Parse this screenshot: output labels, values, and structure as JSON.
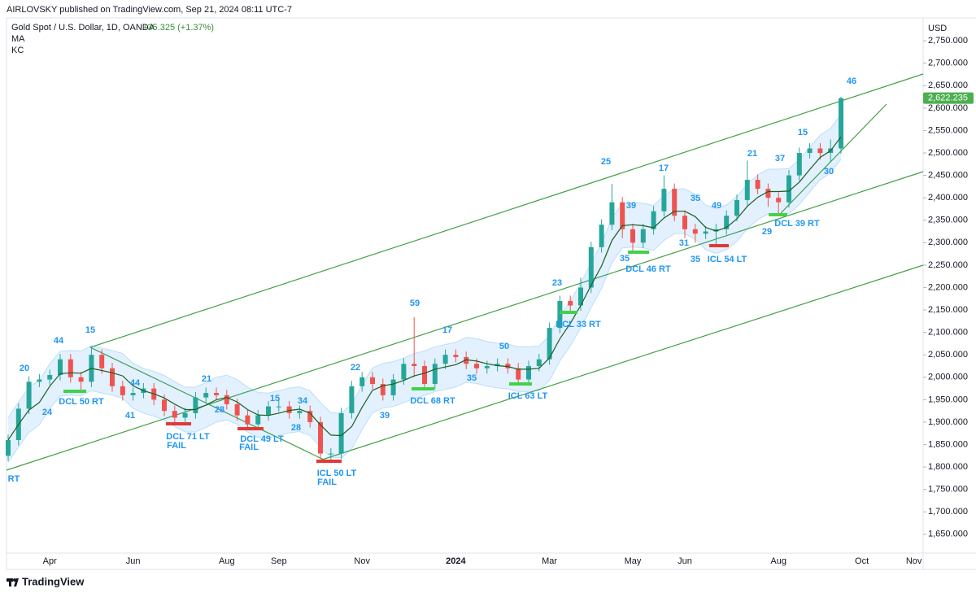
{
  "chart_data": {
    "type": "candlestick",
    "header": "AIRLOVSKY published on TradingView.com, Sep 21, 2024 08:11 UTC-7",
    "symbol": "Gold Spot / U.S. Dollar, 1D, OANDA",
    "change": "+35.325 (+1.37%)",
    "indicators": [
      "MA",
      "KC"
    ],
    "currency": "USD",
    "footer": "TradingView",
    "up_color": "#26a69a",
    "down_color": "#ef5350",
    "ma_color": "#1b5e20",
    "kc_color": "#2196f3",
    "annotation_color": "#2196f3",
    "change_color": "#388e3c",
    "categories": [
      null,
      null,
      null,
      null,
      "Apr",
      null,
      null,
      null,
      null,
      null,
      null,
      null,
      "Jun",
      null,
      null,
      null,
      null,
      null,
      null,
      null,
      null,
      "Aug",
      null,
      null,
      null,
      null,
      "Sep",
      null,
      null,
      null,
      null,
      null,
      null,
      null,
      "Nov",
      null,
      null,
      null,
      null,
      null,
      null,
      null,
      null,
      "2024",
      null,
      null,
      null,
      null,
      null,
      null,
      null,
      null,
      "Mar",
      null,
      null,
      null,
      null,
      null,
      null,
      null,
      "May",
      null,
      null,
      null,
      null,
      "Jun",
      null,
      null,
      null,
      null,
      null,
      null,
      null,
      null,
      "Aug",
      null,
      null,
      null,
      null,
      null,
      null,
      null,
      "Oct",
      null,
      null,
      null,
      null,
      "Nov"
    ],
    "open": [
      1825,
      1860,
      1930,
      1990,
      1995,
      2005,
      2040,
      2000,
      1990,
      2050,
      2020,
      1980,
      1960,
      1965,
      1975,
      1950,
      1925,
      1910,
      1920,
      1955,
      1965,
      1960,
      1940,
      1915,
      1895,
      1915,
      1935,
      1935,
      1920,
      1925,
      1900,
      1830,
      1830,
      1920,
      1980,
      2000,
      1985,
      1960,
      1995,
      2030,
      2025,
      1985,
      2030,
      2050,
      2045,
      2030,
      2020,
      2025,
      2030,
      2020,
      1995,
      2025,
      2040,
      2110,
      2170,
      2160,
      2200,
      2290,
      2340,
      2390,
      2330,
      2300,
      2330,
      2370,
      2420,
      2360,
      2330,
      2320,
      2325,
      2330,
      2360,
      2395,
      2440,
      2420,
      2400,
      2390,
      2450,
      2500,
      2510,
      2500,
      2510,
      null,
      null,
      null,
      null,
      null,
      null,
      null
    ],
    "high": [
      1872,
      1942,
      2002,
      2007,
      2017,
      2052,
      2052,
      2012,
      2068,
      2062,
      2032,
      1992,
      1977,
      1987,
      1987,
      1962,
      1937,
      1932,
      1967,
      1977,
      1977,
      1972,
      1952,
      1927,
      1927,
      1947,
      1950,
      1947,
      1937,
      1937,
      1912,
      1842,
      1932,
      1992,
      2012,
      2012,
      1997,
      2007,
      2042,
      2134,
      2037,
      2042,
      2062,
      2062,
      2057,
      2042,
      2037,
      2042,
      2042,
      2032,
      2037,
      2052,
      2122,
      2182,
      2182,
      2222,
      2302,
      2352,
      2431,
      2402,
      2342,
      2342,
      2382,
      2450,
      2432,
      2372,
      2342,
      2337,
      2342,
      2372,
      2407,
      2483,
      2452,
      2432,
      2412,
      2462,
      2512,
      2522,
      2522,
      2530,
      2625,
      null,
      null,
      null,
      null,
      null,
      null,
      null
    ],
    "low": [
      1813,
      1848,
      1918,
      1978,
      1983,
      1993,
      1988,
      1969,
      1978,
      2008,
      1968,
      1948,
      1948,
      1953,
      1938,
      1913,
      1896,
      1898,
      1908,
      1943,
      1948,
      1928,
      1903,
      1886,
      1883,
      1903,
      1923,
      1908,
      1908,
      1888,
      1818,
      1813,
      1818,
      1908,
      1968,
      1973,
      1948,
      1948,
      1983,
      2000,
      1974,
      1973,
      2018,
      2033,
      2018,
      2008,
      2008,
      2013,
      2008,
      1985,
      1983,
      2013,
      2028,
      2098,
      2143,
      2148,
      2188,
      2278,
      2328,
      2310,
      2279,
      2288,
      2318,
      2358,
      2348,
      2310,
      2300,
      2308,
      2293,
      2318,
      2348,
      2383,
      2408,
      2380,
      2362,
      2378,
      2438,
      2488,
      2485,
      2480,
      2498,
      null,
      null,
      null,
      null,
      null,
      null,
      null
    ],
    "close": [
      1860,
      1930,
      1990,
      1995,
      2005,
      2040,
      2000,
      1990,
      2050,
      2020,
      1980,
      1960,
      1965,
      1975,
      1950,
      1925,
      1910,
      1920,
      1955,
      1965,
      1960,
      1940,
      1915,
      1895,
      1915,
      1935,
      1935,
      1920,
      1925,
      1900,
      1830,
      1830,
      1920,
      1980,
      2000,
      1985,
      1960,
      1995,
      2030,
      2025,
      1985,
      2030,
      2050,
      2045,
      2030,
      2020,
      2025,
      2030,
      2020,
      1995,
      2025,
      2040,
      2110,
      2170,
      2160,
      2200,
      2290,
      2340,
      2390,
      2330,
      2300,
      2330,
      2370,
      2420,
      2360,
      2330,
      2320,
      2325,
      2330,
      2360,
      2395,
      2440,
      2420,
      2400,
      2390,
      2450,
      2500,
      2510,
      2500,
      2510,
      2622.235,
      null,
      null,
      null,
      null,
      null,
      null,
      null
    ],
    "ma": [
      1860,
      1895,
      1927,
      1944,
      1980,
      2008,
      2010,
      2009,
      2020,
      2015,
      2010,
      2003,
      1981,
      1970,
      1963,
      1954,
      1940,
      1928,
      1928,
      1938,
      1950,
      1955,
      1945,
      1928,
      1916,
      1915,
      1920,
      1926,
      1929,
      1920,
      1894,
      1871,
      1870,
      1890,
      1933,
      1971,
      1981,
      1985,
      1993,
      2003,
      2009,
      2018,
      2023,
      2028,
      2039,
      2036,
      2030,
      2026,
      2024,
      2018,
      2018,
      2020,
      2043,
      2086,
      2120,
      2160,
      2205,
      2248,
      2305,
      2338,
      2340,
      2338,
      2333,
      2355,
      2370,
      2370,
      2358,
      2334,
      2326,
      2334,
      2353,
      2381,
      2401,
      2414,
      2414,
      2415,
      2435,
      2463,
      2490,
      2505,
      2536,
      null,
      null,
      null,
      null,
      null,
      null,
      null
    ],
    "kc_upper": [
      1910,
      1945,
      1977,
      1994,
      2030,
      2058,
      2060,
      2059,
      2070,
      2065,
      2060,
      2053,
      2031,
      2020,
      2013,
      2004,
      1990,
      1978,
      1978,
      1988,
      2000,
      2005,
      1995,
      1978,
      1966,
      1965,
      1970,
      1976,
      1979,
      1970,
      1944,
      1921,
      1920,
      1940,
      1983,
      2021,
      2031,
      2035,
      2043,
      2053,
      2059,
      2068,
      2073,
      2078,
      2089,
      2086,
      2080,
      2076,
      2074,
      2068,
      2068,
      2070,
      2093,
      2136,
      2170,
      2210,
      2255,
      2298,
      2355,
      2388,
      2390,
      2388,
      2383,
      2405,
      2420,
      2420,
      2408,
      2384,
      2376,
      2384,
      2403,
      2431,
      2451,
      2464,
      2464,
      2465,
      2485,
      2513,
      2540,
      2555,
      2586,
      null,
      null,
      null,
      null,
      null,
      null,
      null
    ],
    "kc_lower": [
      1810,
      1845,
      1877,
      1894,
      1930,
      1958,
      1960,
      1959,
      1970,
      1965,
      1960,
      1953,
      1931,
      1920,
      1913,
      1904,
      1890,
      1878,
      1878,
      1888,
      1900,
      1905,
      1895,
      1878,
      1866,
      1865,
      1870,
      1876,
      1879,
      1870,
      1844,
      1821,
      1820,
      1840,
      1883,
      1921,
      1931,
      1935,
      1943,
      1953,
      1959,
      1968,
      1973,
      1978,
      1989,
      1986,
      1980,
      1976,
      1974,
      1968,
      1968,
      1970,
      1993,
      2036,
      2070,
      2110,
      2155,
      2198,
      2255,
      2288,
      2290,
      2288,
      2283,
      2305,
      2320,
      2320,
      2308,
      2284,
      2276,
      2284,
      2303,
      2331,
      2351,
      2364,
      2364,
      2365,
      2385,
      2413,
      2440,
      2455,
      2486,
      null,
      null,
      null,
      null,
      null,
      null,
      null
    ],
    "last_price": {
      "value": 2622.235,
      "label": "2,622.235"
    },
    "ylim": [
      1608,
      2801
    ],
    "yticks": [
      {
        "value": 1650,
        "label": "1,650.000"
      },
      {
        "value": 1700,
        "label": "1,700.000"
      },
      {
        "value": 1750,
        "label": "1,750.000"
      },
      {
        "value": 1800,
        "label": "1,800.000"
      },
      {
        "value": 1850,
        "label": "1,850.000"
      },
      {
        "value": 1900,
        "label": "1,900.000"
      },
      {
        "value": 1950,
        "label": "1,950.000"
      },
      {
        "value": 2000,
        "label": "2,000.000"
      },
      {
        "value": 2050,
        "label": "2,050.000"
      },
      {
        "value": 2100,
        "label": "2,100.000"
      },
      {
        "value": 2150,
        "label": "2,150.000"
      },
      {
        "value": 2200,
        "label": "2,200.000"
      },
      {
        "value": 2250,
        "label": "2,250.000"
      },
      {
        "value": 2300,
        "label": "2,300.000"
      },
      {
        "value": 2350,
        "label": "2,350.000"
      },
      {
        "value": 2400,
        "label": "2,400.000"
      },
      {
        "value": 2450,
        "label": "2,450.000"
      },
      {
        "value": 2500,
        "label": "2,500.000"
      },
      {
        "value": 2550,
        "label": "2,550.000"
      },
      {
        "value": 2600,
        "label": "2,600.000"
      },
      {
        "value": 2650,
        "label": "2,650.000"
      },
      {
        "value": 2700,
        "label": "2,700.000"
      },
      {
        "value": 2750,
        "label": "2,750.000"
      }
    ],
    "annotations": [
      "20",
      "44",
      "15",
      "24",
      "DCL 50 RT",
      "44",
      "41",
      "21",
      "28",
      "DCL 71 LT",
      "FAIL",
      "15",
      "34",
      "28",
      "DCL 49 LT",
      "FAIL",
      "ICL 50 LT",
      "FAIL",
      "RT",
      "22",
      "39",
      "59",
      "17",
      "DCL 68 RT",
      "35",
      "50",
      "ICL 63 LT",
      "23",
      "DCL 33 RT",
      "25",
      "39",
      "35",
      "DCL 46 RT",
      "17",
      "35",
      "31",
      "35",
      "49",
      "ICL 54 LT",
      "21",
      "37",
      "15",
      "29",
      "DCL 39 RT",
      "30",
      "46"
    ]
  }
}
